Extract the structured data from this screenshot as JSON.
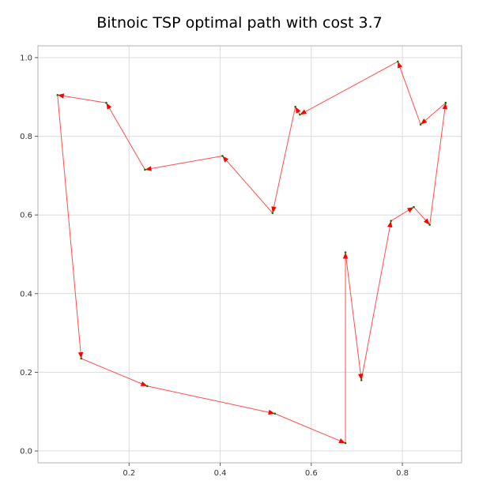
{
  "chart_data": {
    "type": "line",
    "title": "Bitnoic TSP optimal path with cost 3.7",
    "xlabel": "",
    "ylabel": "",
    "xlim": [
      0.0,
      0.93
    ],
    "ylim": [
      -0.03,
      1.03
    ],
    "xticks": [
      "0.2",
      "0.4",
      "0.6",
      "0.8"
    ],
    "yticks": [
      "0.0",
      "0.2",
      "0.4",
      "0.6",
      "0.8",
      "1.0"
    ],
    "grid": true,
    "line_color": "#ff4d4d",
    "arrow_color": "#ff0000",
    "point_color": "#008000",
    "series": [
      {
        "x": [
          0.043,
          0.095,
          0.24,
          0.52,
          0.675,
          0.675,
          0.71,
          0.775,
          0.825,
          0.86,
          0.895,
          0.84,
          0.79,
          0.575,
          0.565,
          0.515,
          0.405,
          0.235,
          0.15,
          0.043
        ],
        "y": [
          0.905,
          0.235,
          0.165,
          0.095,
          0.02,
          0.505,
          0.18,
          0.585,
          0.62,
          0.575,
          0.885,
          0.83,
          0.99,
          0.855,
          0.875,
          0.605,
          0.75,
          0.715,
          0.885,
          0.905
        ]
      }
    ]
  }
}
